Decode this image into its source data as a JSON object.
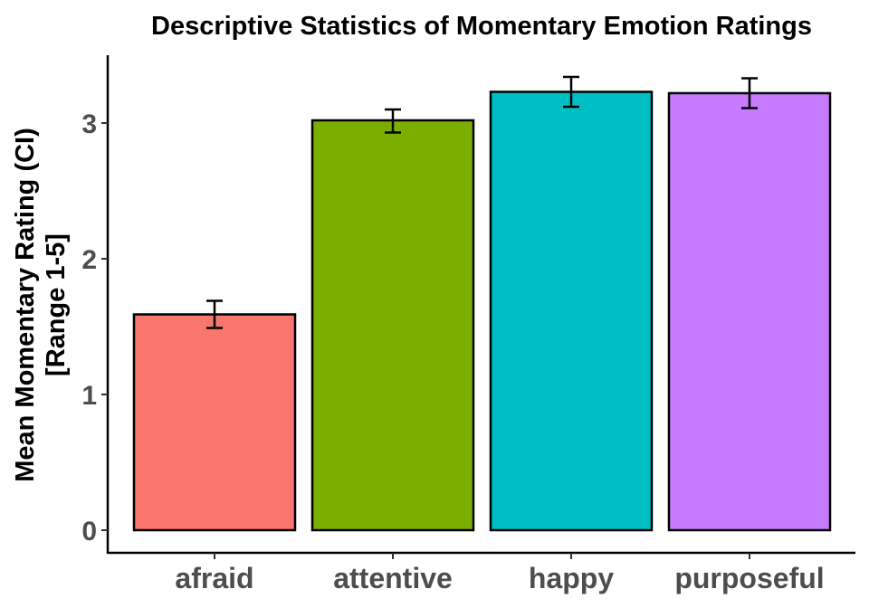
{
  "chart_data": {
    "type": "bar",
    "title": "Descriptive Statistics of Momentary Emotion Ratings",
    "ylabel_lines": [
      "Mean Momentary Rating (CI)",
      "[Range 1-5]"
    ],
    "xlabel": "",
    "categories": [
      "afraid",
      "attentive",
      "happy",
      "purposeful"
    ],
    "values": [
      1.59,
      3.02,
      3.23,
      3.22
    ],
    "ci_lower": [
      1.49,
      2.93,
      3.12,
      3.11
    ],
    "ci_upper": [
      1.69,
      3.1,
      3.34,
      3.33
    ],
    "colors": [
      "#F8766D",
      "#7CAE00",
      "#00BFC4",
      "#C77CFF"
    ],
    "ylim": [
      0,
      3.5
    ],
    "yticks": [
      0,
      1,
      2,
      3
    ],
    "grid": false,
    "legend": "none"
  }
}
